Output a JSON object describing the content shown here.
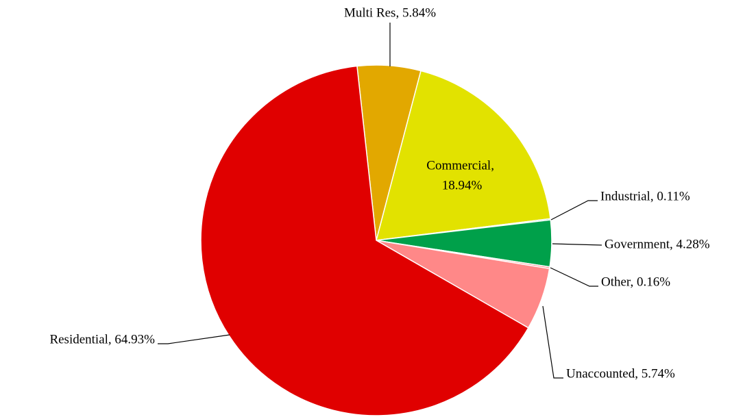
{
  "chart_data": {
    "type": "pie",
    "labels": [
      "Multi Res, 5.84%",
      "Commercial, 18.94%",
      "Industrial, 0.11%",
      "Government, 4.28%",
      "Other, 0.16%",
      "Unaccounted, 5.74%",
      "Residential, 64.93%"
    ],
    "values": [
      5.84,
      18.94,
      0.11,
      4.28,
      0.16,
      5.74,
      64.93
    ],
    "colors": [
      "#e2a800",
      "#e2e200",
      "#00a04a",
      "#00a04a",
      "#ff8a8a",
      "#ff8888",
      "#e00000"
    ]
  }
}
